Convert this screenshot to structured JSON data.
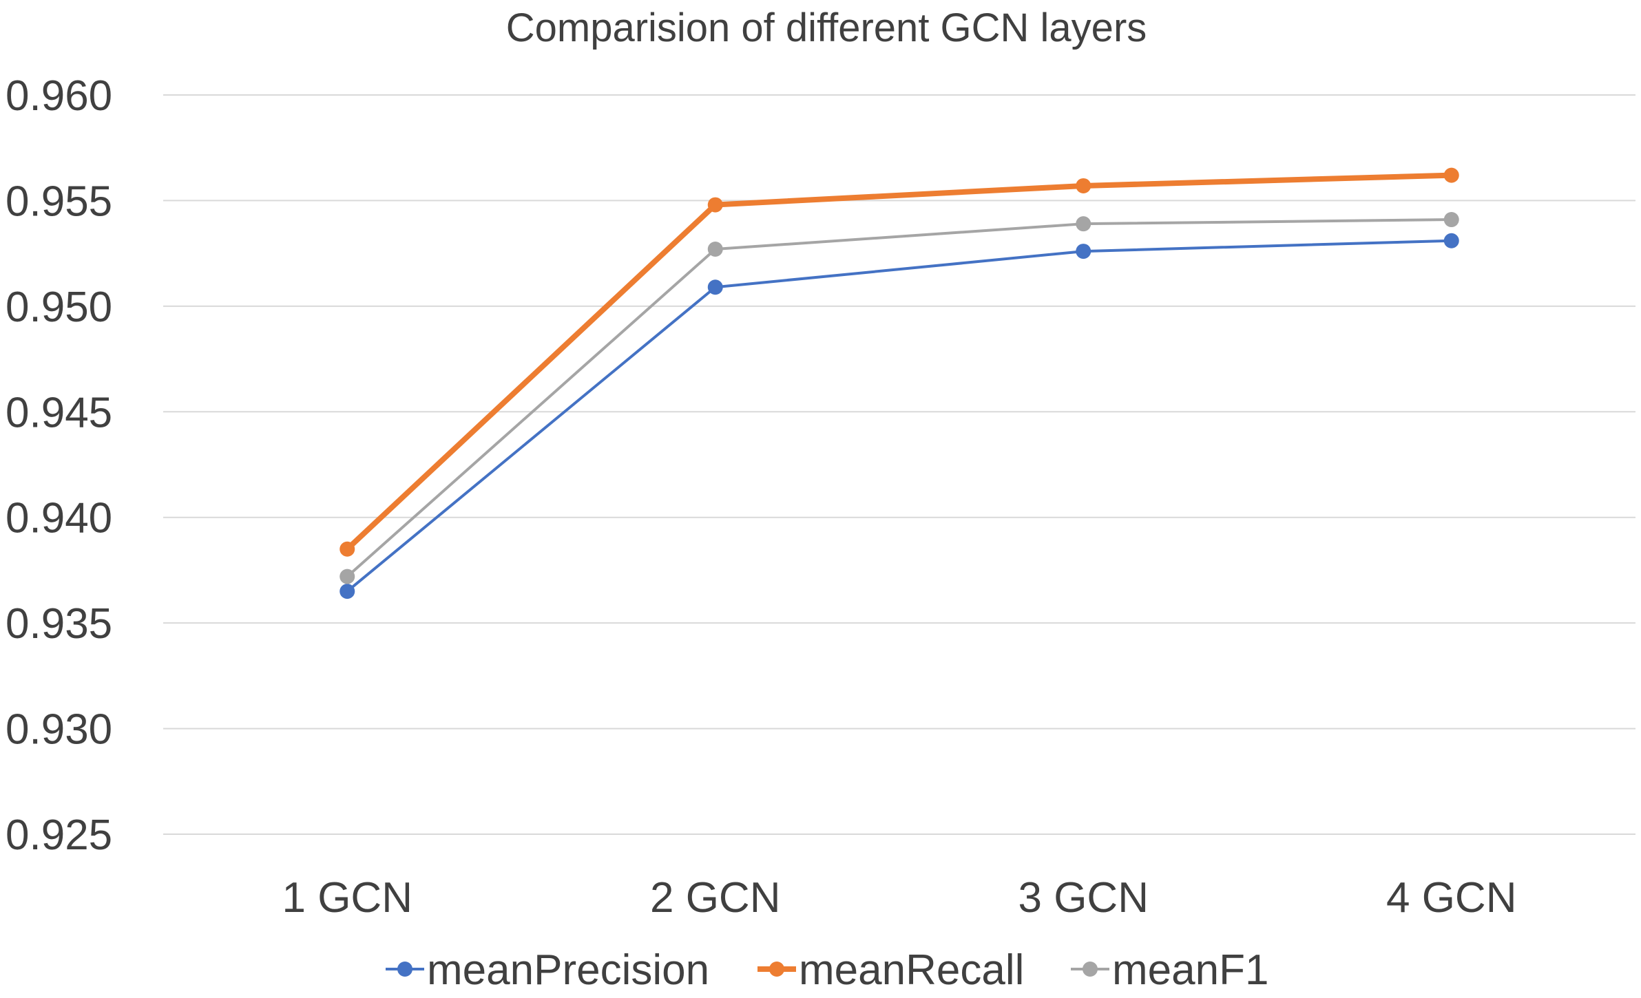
{
  "chart_data": {
    "type": "line",
    "title": "Comparision of different GCN layers",
    "xlabel": "",
    "ylabel": "",
    "categories": [
      "1 GCN",
      "2 GCN",
      "3 GCN",
      "4 GCN"
    ],
    "ylim": [
      0.925,
      0.96
    ],
    "yticks": [
      "0.960",
      "0.955",
      "0.950",
      "0.945",
      "0.940",
      "0.935",
      "0.930",
      "0.925"
    ],
    "grid": "horizontal",
    "legend_position": "bottom",
    "series": [
      {
        "name": "meanPrecision",
        "color": "#4472c4",
        "values": [
          0.9365,
          0.9509,
          0.9526,
          0.9531
        ]
      },
      {
        "name": "meanRecall",
        "color": "#ed7d31",
        "values": [
          0.9385,
          0.9548,
          0.9557,
          0.9562
        ]
      },
      {
        "name": "meanF1",
        "color": "#a5a5a5",
        "values": [
          0.9372,
          0.9527,
          0.9539,
          0.9541
        ]
      }
    ]
  }
}
